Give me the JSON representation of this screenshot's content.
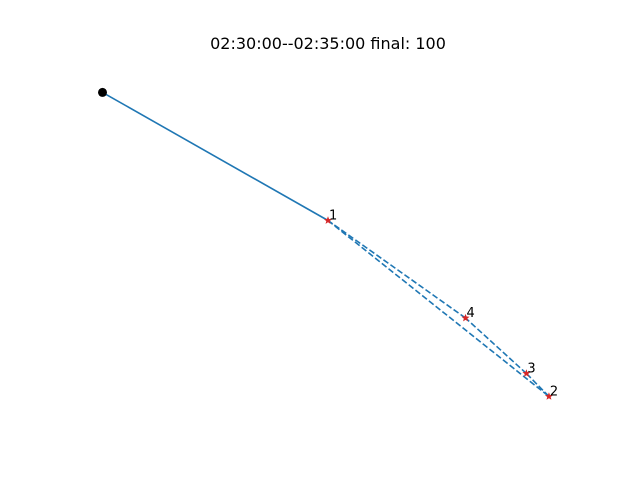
{
  "chart_data": {
    "type": "scatter",
    "title": "02:30:00--02:35:00 final: 100",
    "xlabel": "",
    "ylabel": "",
    "axes_visible": false,
    "grid": false,
    "xlim": [
      -1.0,
      21.0
    ],
    "ylim": [
      -1.5,
      17.8
    ],
    "start_point": {
      "x": 0,
      "y": 16,
      "marker": "circle",
      "color": "#000000"
    },
    "solid_path": {
      "style": "solid",
      "color": "#1f77b4",
      "points": [
        {
          "x": 0,
          "y": 16
        },
        {
          "x": 10,
          "y": 9.3
        }
      ]
    },
    "dashed_path": {
      "style": "dashed",
      "color": "#1f77b4",
      "points": [
        {
          "x": 10,
          "y": 9.3
        },
        {
          "x": 19.8,
          "y": 0.1
        },
        {
          "x": 18.8,
          "y": 1.3
        },
        {
          "x": 16.1,
          "y": 4.2
        },
        {
          "x": 10,
          "y": 9.3
        }
      ]
    },
    "stops": [
      {
        "label": "1",
        "x": 10,
        "y": 9.3
      },
      {
        "label": "2",
        "x": 19.8,
        "y": 0.1
      },
      {
        "label": "3",
        "x": 18.8,
        "y": 1.3
      },
      {
        "label": "4",
        "x": 16.1,
        "y": 4.2
      }
    ],
    "stop_marker": {
      "shape": "star",
      "color": "#d62728"
    }
  }
}
